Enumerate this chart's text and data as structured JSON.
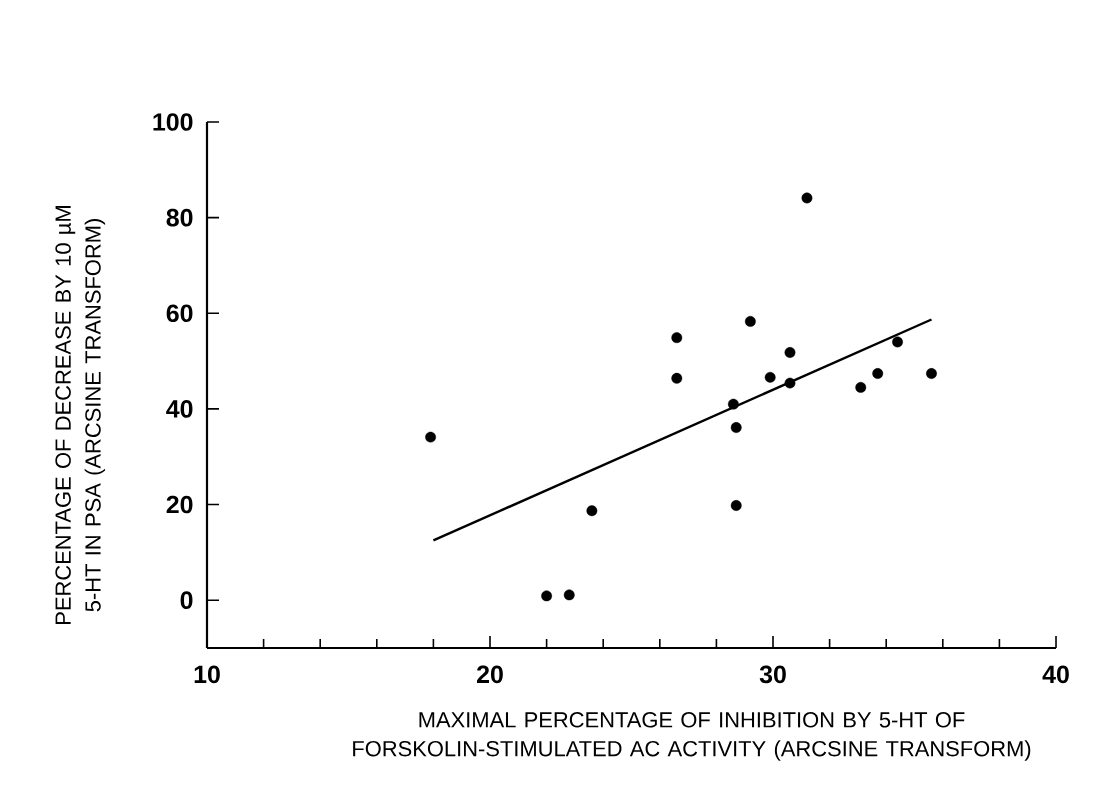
{
  "chart_data": {
    "type": "scatter",
    "xlabel": "MAXIMAL PERCENTAGE OF INHIBITION BY 5-HT OF FORSKOLIN-STIMULATED AC ACTIVITY (ARCSINE TRANSFORM)",
    "ylabel": "PERCENTAGE OF DECREASE BY 10 µM 5-HT IN PSA (ARCSINE TRANSFORM)",
    "xlim": [
      10,
      40
    ],
    "ylim": [
      -10,
      100
    ],
    "xticks": [
      10,
      20,
      30,
      40
    ],
    "yticks": [
      0,
      20,
      40,
      60,
      80,
      100
    ],
    "marker": "circle",
    "series": [
      {
        "color": "#000000",
        "x": [
          17.9,
          22.0,
          22.8,
          23.6,
          26.6,
          26.6,
          28.6,
          28.7,
          28.7,
          29.2,
          29.9,
          30.6,
          30.6,
          31.2,
          33.1,
          33.7,
          34.4,
          35.6
        ],
        "values": [
          34.1,
          0.9,
          1.1,
          18.7,
          54.9,
          46.4,
          41.0,
          36.1,
          19.8,
          58.3,
          46.6,
          51.8,
          45.4,
          84.1,
          44.5,
          47.4,
          54.0,
          47.4
        ]
      },
      {
        "type": "line",
        "marker": "none",
        "color": "#000000",
        "x": [
          18.0,
          35.6
        ],
        "values": [
          12.5,
          58.7
        ]
      }
    ]
  }
}
